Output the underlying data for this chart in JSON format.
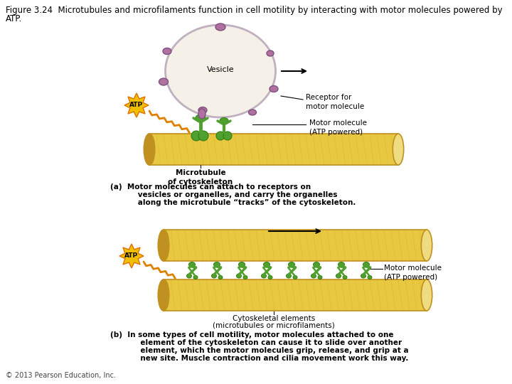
{
  "title_line1": "Figure 3.24  Microtubules and microfilaments function in cell motility by interacting with motor molecules powered by",
  "title_line2": "ATP.",
  "bg_color": "#ffffff",
  "vesicle_fill": "#f5f0e8",
  "vesicle_edge": "#c0b0c0",
  "vesicle_blob_fill": "#b070a0",
  "vesicle_blob_edge": "#805080",
  "tube_fill": "#e8c840",
  "tube_edge": "#c09020",
  "tube_cap_left": "#c09020",
  "tube_cap_right": "#f0dc80",
  "motor_fill": "#50a030",
  "motor_edge": "#308010",
  "atp_fill": "#f0c000",
  "atp_edge": "#e07000",
  "zigzag_color": "#e08000",
  "arrow_color": "#000000",
  "label_vesicle": "Vesicle",
  "label_receptor": "Receptor for\nmotor molecule",
  "label_motor_a": "Motor molecule\n(ATP powered)",
  "label_microtubule": "Microtubule\nof cytoskeleton",
  "label_motor_b": "Motor molecule\n(ATP powered)",
  "label_cytoskeletal_1": "Cytoskeletal elements",
  "label_cytoskeletal_2": "(microtubules or microfilaments)",
  "caption_a_1": "(a)  Motor molecules can attach to receptors on",
  "caption_a_2": "      vesicles or organelles, and carry the organelles",
  "caption_a_3": "      along the microtubule “tracks” of the cytoskeleton.",
  "caption_b_1": "(b)  In some types of cell motility, motor molecules attached to one",
  "caption_b_2": "       element of the cytoskeleton can cause it to slide over another",
  "caption_b_3": "       element, which the motor molecules grip, release, and grip at a",
  "caption_b_4": "       new site. Muscle contraction and cilia movement work this way.",
  "copyright": "© 2013 Pearson Education, Inc.",
  "fs_title": 8.5,
  "fs_label": 7.5,
  "fs_caption": 7.5,
  "fs_copyright": 7
}
